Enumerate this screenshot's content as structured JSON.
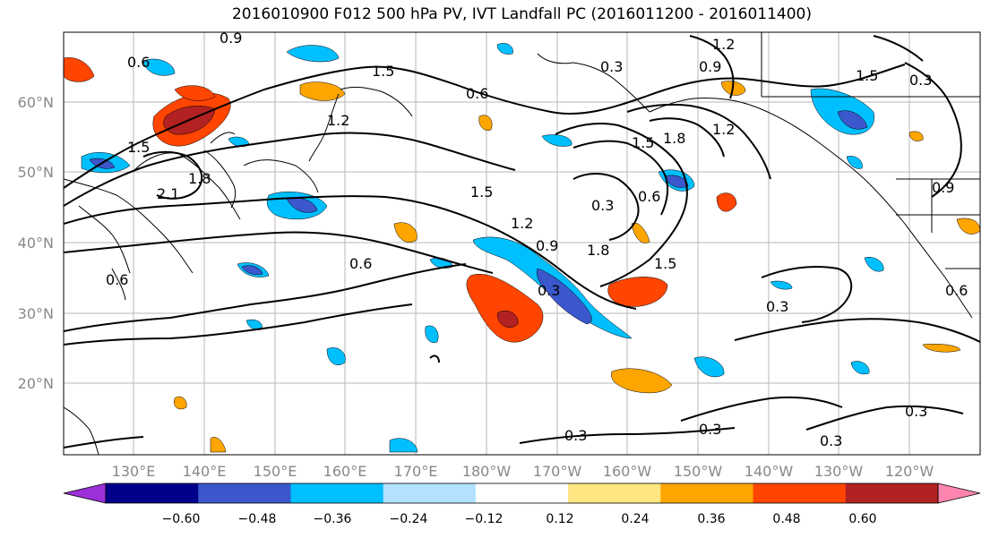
{
  "title": "2016010900 F012 500 hPa PV, IVT Landfall PC (2016011200 - 2016011400)",
  "lat_labels": [
    "60°N",
    "50°N",
    "40°N",
    "30°N",
    "20°N"
  ],
  "lon_labels": [
    "130°E",
    "140°E",
    "150°E",
    "160°E",
    "170°E",
    "180°W",
    "170°W",
    "160°W",
    "150°W",
    "140°W",
    "130°W",
    "120°W"
  ],
  "contour_labels": [
    "0.9",
    "0.6",
    "1.5",
    "1.2",
    "0.6",
    "1.5",
    "1.8",
    "1.2",
    "0.3",
    "1.5",
    "2.1",
    "1.8",
    "1.5",
    "0.3",
    "0.6",
    "1.2",
    "0.9",
    "1.8",
    "0.6",
    "1.5",
    "0.9",
    "0.3",
    "0.3",
    "0.3",
    "0.3",
    "0.3",
    "0.3",
    "0.6",
    "0.3",
    "0.6",
    "1.2",
    "1.5",
    "0.9"
  ],
  "colorbar": {
    "ticks": [
      "−0.60",
      "−0.48",
      "−0.36",
      "−0.24",
      "−0.12",
      "0.12",
      "0.24",
      "0.36",
      "0.48",
      "0.60"
    ],
    "colors": [
      "#9b30d9",
      "#00008b",
      "#3b57cc",
      "#00bfff",
      "#b2e2ff",
      "#ffffff",
      "#ffe680",
      "#ffa500",
      "#ff4500",
      "#b22222",
      "#ff85b0"
    ]
  }
}
